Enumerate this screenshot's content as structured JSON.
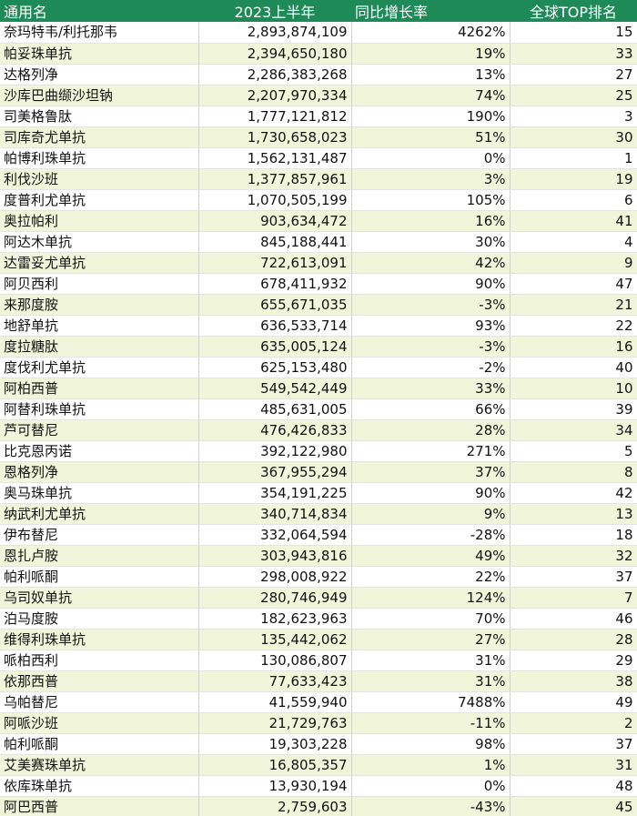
{
  "table": {
    "header": [
      "通用名",
      "2023上半年",
      "同比增长率",
      "全球TOP排名"
    ],
    "rows": [
      [
        "奈玛特韦/利托那韦",
        "2,893,874,109",
        "4262%",
        "15"
      ],
      [
        "帕妥珠单抗",
        "2,394,650,180",
        "19%",
        "33"
      ],
      [
        "达格列净",
        "2,286,383,268",
        "13%",
        "27"
      ],
      [
        "沙库巴曲缬沙坦钠",
        "2,207,970,334",
        "74%",
        "25"
      ],
      [
        "司美格鲁肽",
        "1,777,121,812",
        "190%",
        "3"
      ],
      [
        "司库奇尤单抗",
        "1,730,658,023",
        "51%",
        "30"
      ],
      [
        "帕博利珠单抗",
        "1,562,131,487",
        "0%",
        "1"
      ],
      [
        "利伐沙班",
        "1,377,857,961",
        "3%",
        "19"
      ],
      [
        "度普利尤单抗",
        "1,070,505,199",
        "105%",
        "6"
      ],
      [
        "奥拉帕利",
        "903,634,472",
        "16%",
        "41"
      ],
      [
        "阿达木单抗",
        "845,188,441",
        "30%",
        "4"
      ],
      [
        "达雷妥尤单抗",
        "722,613,091",
        "42%",
        "9"
      ],
      [
        "阿贝西利",
        "678,411,932",
        "90%",
        "47"
      ],
      [
        "来那度胺",
        "655,671,035",
        "-3%",
        "21"
      ],
      [
        "地舒单抗",
        "636,533,714",
        "93%",
        "22"
      ],
      [
        "度拉糖肽",
        "635,005,124",
        "-3%",
        "16"
      ],
      [
        "度伐利尤单抗",
        "625,153,480",
        "-2%",
        "40"
      ],
      [
        "阿柏西普",
        "549,542,449",
        "33%",
        "10"
      ],
      [
        "阿替利珠单抗",
        "485,631,005",
        "66%",
        "39"
      ],
      [
        "芦可替尼",
        "476,426,833",
        "28%",
        "34"
      ],
      [
        "比克恩丙诺",
        "392,122,980",
        "271%",
        "5"
      ],
      [
        "恩格列净",
        "367,955,294",
        "37%",
        "8"
      ],
      [
        "奥马珠单抗",
        "354,191,225",
        "90%",
        "42"
      ],
      [
        "纳武利尤单抗",
        "340,714,834",
        "9%",
        "13"
      ],
      [
        "伊布替尼",
        "332,064,594",
        "-28%",
        "18"
      ],
      [
        "恩扎卢胺",
        "303,943,816",
        "49%",
        "32"
      ],
      [
        "帕利哌酮",
        "298,008,922",
        "22%",
        "37"
      ],
      [
        "乌司奴单抗",
        "280,746,949",
        "124%",
        "7"
      ],
      [
        "泊马度胺",
        "182,623,963",
        "70%",
        "46"
      ],
      [
        "维得利珠单抗",
        "135,442,062",
        "27%",
        "28"
      ],
      [
        "哌柏西利",
        "130,086,807",
        "31%",
        "29"
      ],
      [
        "依那西普",
        "77,633,423",
        "31%",
        "38"
      ],
      [
        "乌帕替尼",
        "41,559,940",
        "7488%",
        "49"
      ],
      [
        "阿哌沙班",
        "21,729,763",
        "-11%",
        "2"
      ],
      [
        "帕利哌酮",
        "19,303,228",
        "98%",
        "37"
      ],
      [
        "艾美赛珠单抗",
        "16,805,357",
        "1%",
        "31"
      ],
      [
        "依库珠单抗",
        "13,930,194",
        "0%",
        "48"
      ],
      [
        "阿巴西普",
        "2,759,603",
        "-43%",
        "45"
      ]
    ]
  }
}
